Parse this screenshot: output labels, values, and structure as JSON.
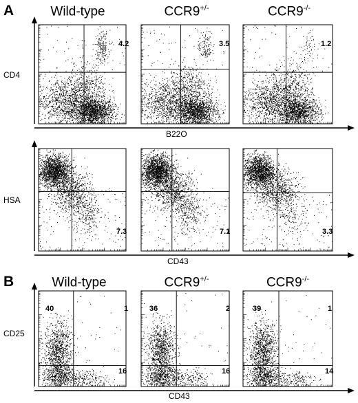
{
  "figure": {
    "panel_a": {
      "letter": "A",
      "columns": [
        {
          "name": "Wild-type",
          "sup": ""
        },
        {
          "name": "CCR9",
          "sup": "+/-"
        },
        {
          "name": "CCR9",
          "sup": "-/-"
        }
      ],
      "row1": {
        "y_label": "CD4",
        "x_label": "B22O",
        "plots": [
          {
            "quadrant_value": "4.2"
          },
          {
            "quadrant_value": "3.5"
          },
          {
            "quadrant_value": "1.2"
          }
        ]
      },
      "row2": {
        "y_label": "HSA",
        "x_label": "CD43",
        "plots": [
          {
            "quadrant_value": "7.3"
          },
          {
            "quadrant_value": "7.1"
          },
          {
            "quadrant_value": "3.3"
          }
        ]
      }
    },
    "panel_b": {
      "letter": "B",
      "columns": [
        {
          "name": "Wild-type",
          "sup": ""
        },
        {
          "name": "CCR9",
          "sup": "+/-"
        },
        {
          "name": "CCR9",
          "sup": "-/-"
        }
      ],
      "y_label": "CD25",
      "x_label": "CD43",
      "plots": [
        {
          "upper_left": "40",
          "upper_right": "1",
          "lower_right": "16"
        },
        {
          "upper_left": "36",
          "upper_right": "2",
          "lower_right": "16"
        },
        {
          "upper_left": "39",
          "upper_right": "1",
          "lower_right": "14"
        }
      ]
    },
    "style": {
      "ink": "#000000",
      "background": "#ffffff"
    }
  }
}
